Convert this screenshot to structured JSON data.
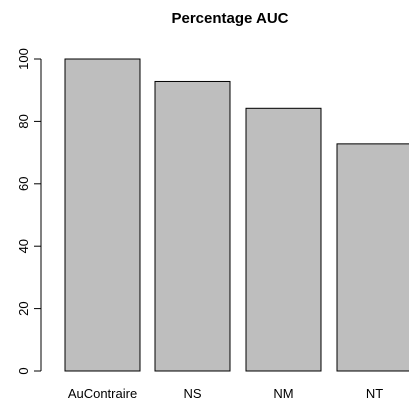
{
  "chart_data": {
    "type": "bar",
    "title": "Percentage AUC",
    "xlabel": "",
    "ylabel": "",
    "categories": [
      "AuContraire",
      "NS",
      "NM",
      "NT"
    ],
    "values": [
      100,
      92.8,
      84.2,
      72.8
    ],
    "ylim": [
      0,
      100
    ],
    "yticks": [
      0,
      20,
      40,
      60,
      80,
      100
    ],
    "ytick_labels": [
      "0",
      "20",
      "40",
      "60",
      "80",
      "100"
    ],
    "grid": false,
    "legend": "none",
    "colors": {
      "bar_fill": "#bebebe",
      "bar_stroke": "#000000",
      "axis": "#000000"
    }
  }
}
